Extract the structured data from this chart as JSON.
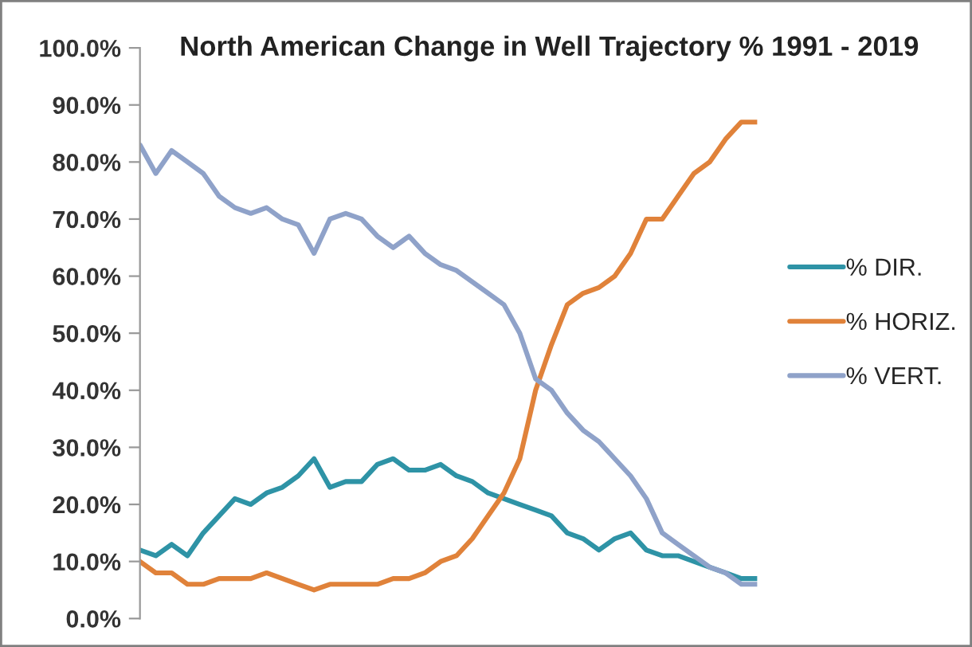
{
  "chart_data": {
    "type": "line",
    "title": "North American Change in Well Trajectory % 1991 - 2019",
    "categories": [
      null,
      null,
      null,
      null,
      null,
      null,
      null,
      null,
      null,
      null,
      null,
      null,
      null,
      null,
      null,
      null,
      null,
      null,
      null,
      null,
      null,
      null,
      null,
      null,
      null,
      null,
      null,
      null,
      null,
      null,
      null,
      null,
      null,
      null,
      null,
      null,
      null,
      null,
      null,
      null
    ],
    "series": [
      {
        "name": "% DIR.",
        "color": "#2e93a6",
        "values": [
          12,
          11,
          13,
          11,
          15,
          18,
          21,
          20,
          22,
          23,
          25,
          28,
          23,
          24,
          24,
          27,
          28,
          26,
          26,
          27,
          25,
          24,
          22,
          21,
          20,
          19,
          18,
          15,
          14,
          12,
          14,
          15,
          12,
          11,
          11,
          10,
          9,
          8,
          7,
          7
        ]
      },
      {
        "name": "% HORIZ.",
        "color": "#e0823a",
        "values": [
          10,
          8,
          8,
          6,
          6,
          7,
          7,
          7,
          8,
          7,
          6,
          5,
          6,
          6,
          6,
          6,
          7,
          7,
          8,
          10,
          11,
          14,
          18,
          22,
          28,
          40,
          48,
          55,
          57,
          58,
          60,
          64,
          70,
          70,
          74,
          78,
          80,
          84,
          87,
          87
        ]
      },
      {
        "name": "% VERT.",
        "color": "#8fa2c9",
        "values": [
          83,
          78,
          82,
          80,
          78,
          74,
          72,
          71,
          72,
          70,
          69,
          64,
          70,
          71,
          70,
          67,
          65,
          67,
          64,
          62,
          61,
          59,
          57,
          55,
          50,
          42,
          40,
          36,
          33,
          31,
          28,
          25,
          21,
          15,
          13,
          11,
          9,
          8,
          6,
          6
        ]
      }
    ],
    "ylim": [
      0,
      100
    ],
    "yticks": [
      {
        "value": 0,
        "label": "0.0%"
      },
      {
        "value": 10,
        "label": "10.0%"
      },
      {
        "value": 20,
        "label": "20.0%"
      },
      {
        "value": 30,
        "label": "30.0%"
      },
      {
        "value": 40,
        "label": "40.0%"
      },
      {
        "value": 50,
        "label": "50.0%"
      },
      {
        "value": 60,
        "label": "60.0%"
      },
      {
        "value": 70,
        "label": "70.0%"
      },
      {
        "value": 80,
        "label": "80.0%"
      },
      {
        "value": 90,
        "label": "90.0%"
      },
      {
        "value": 100,
        "label": "100.0%"
      }
    ],
    "tick_labels": "y",
    "grid": false,
    "legend": "right"
  }
}
